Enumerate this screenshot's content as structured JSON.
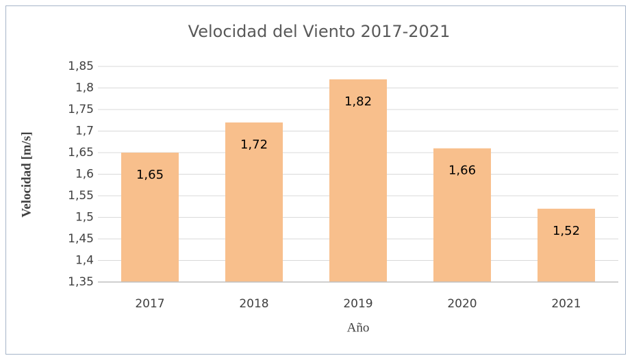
{
  "chart_data": {
    "type": "bar",
    "title": "Velocidad del Viento 2017-2021",
    "x_label": "Año",
    "y_label": "Velocidad [m/s]",
    "categories": [
      "2017",
      "2018",
      "2019",
      "2020",
      "2021"
    ],
    "values": [
      1.65,
      1.72,
      1.82,
      1.66,
      1.52
    ],
    "value_labels": [
      "1,65",
      "1,72",
      "1,82",
      "1,66",
      "1,52"
    ],
    "color": "#f8bf8c",
    "ylim": [
      1.35,
      1.85
    ],
    "yticks": [
      {
        "value": 1.35,
        "label": "1,35"
      },
      {
        "value": 1.4,
        "label": "1,4"
      },
      {
        "value": 1.45,
        "label": "1,45"
      },
      {
        "value": 1.5,
        "label": "1,5"
      },
      {
        "value": 1.55,
        "label": "1,55"
      },
      {
        "value": 1.6,
        "label": "1,6"
      },
      {
        "value": 1.65,
        "label": "1,65"
      },
      {
        "value": 1.7,
        "label": "1,7"
      },
      {
        "value": 1.75,
        "label": "1,75"
      },
      {
        "value": 1.8,
        "label": "1,8"
      },
      {
        "value": 1.85,
        "label": "1,85"
      }
    ],
    "grid": true
  }
}
